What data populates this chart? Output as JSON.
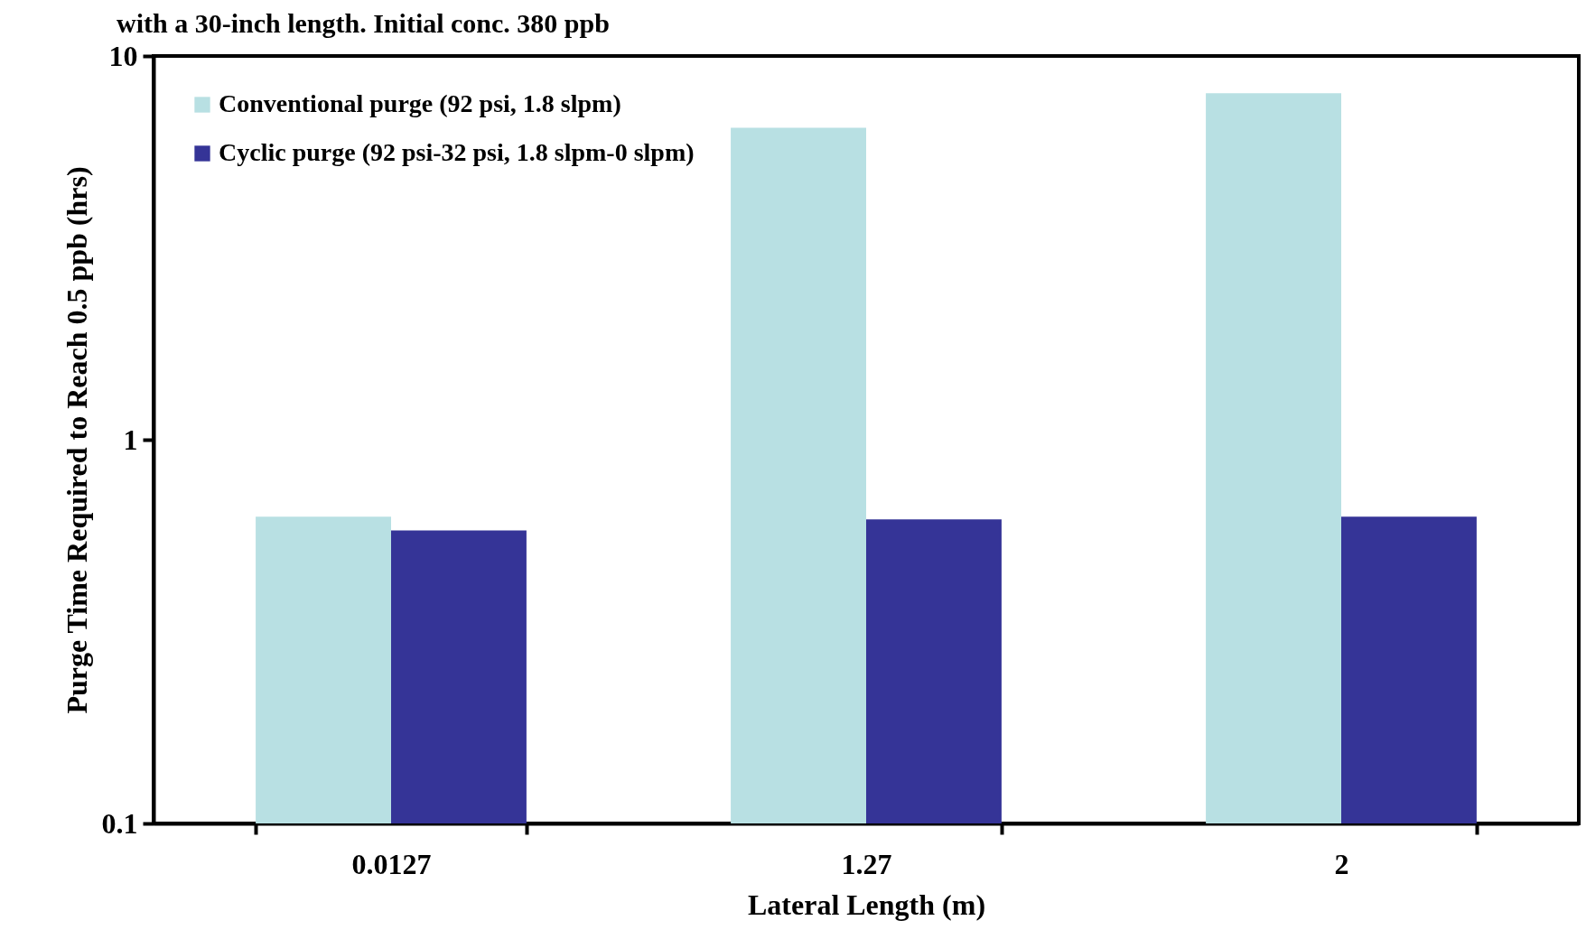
{
  "chart_data": {
    "type": "bar",
    "title": "with a 30-inch length. Initial conc. 380 ppb",
    "xlabel": "Lateral Length (m)",
    "ylabel": "Purge Time Required to Reach 0.5 ppb  (hrs)",
    "categories": [
      "0.0127",
      "1.27",
      "2"
    ],
    "series": [
      {
        "name": "Conventional purge (92 psi, 1.8 slpm)",
        "color": "#b8e0e3",
        "values": [
          0.63,
          6.5,
          8.0
        ]
      },
      {
        "name": "Cyclic purge (92 psi-32 psi, 1.8 slpm-0 slpm)",
        "color": "#353497",
        "values": [
          0.58,
          0.62,
          0.63
        ]
      }
    ],
    "log": true,
    "ylim": [
      0.1,
      10
    ],
    "yticks": [
      0.1,
      1,
      10
    ],
    "legend": "top left",
    "grid": false
  }
}
